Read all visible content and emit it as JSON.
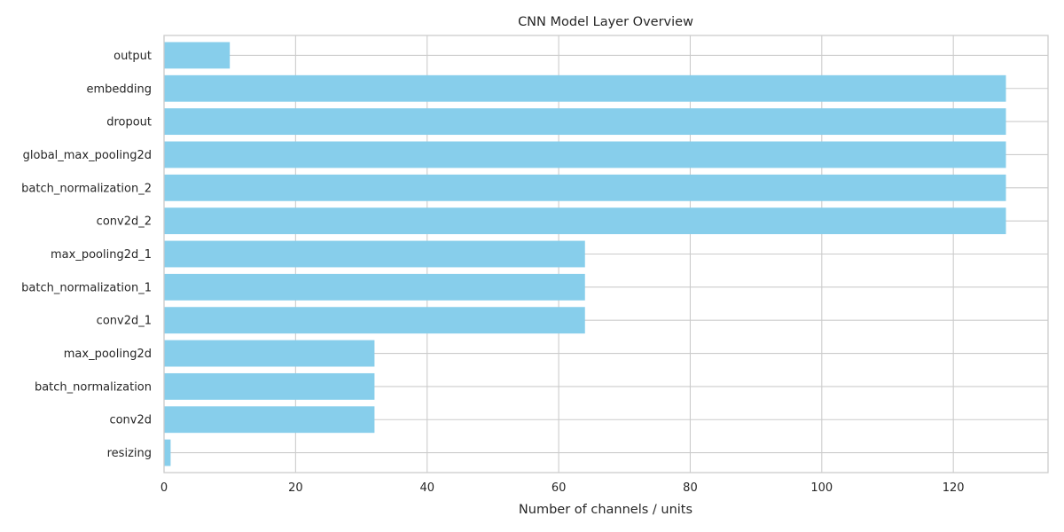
{
  "chart_data": {
    "type": "bar",
    "orientation": "horizontal",
    "title": "CNN Model Layer Overview",
    "xlabel": "Number of channels / units",
    "ylabel": "",
    "categories": [
      "resizing",
      "conv2d",
      "batch_normalization",
      "max_pooling2d",
      "conv2d_1",
      "batch_normalization_1",
      "max_pooling2d_1",
      "conv2d_2",
      "batch_normalization_2",
      "global_max_pooling2d",
      "dropout",
      "embedding",
      "output"
    ],
    "values": [
      1,
      32,
      32,
      32,
      64,
      64,
      64,
      128,
      128,
      128,
      128,
      128,
      10
    ],
    "xlim": [
      0,
      134.4
    ],
    "xticks": [
      0,
      20,
      40,
      60,
      80,
      100,
      120
    ],
    "grid": true,
    "colors": {
      "bar": "#87ceeb",
      "grid": "#cccccc",
      "axes": "#cccccc",
      "text": "#262626"
    }
  }
}
